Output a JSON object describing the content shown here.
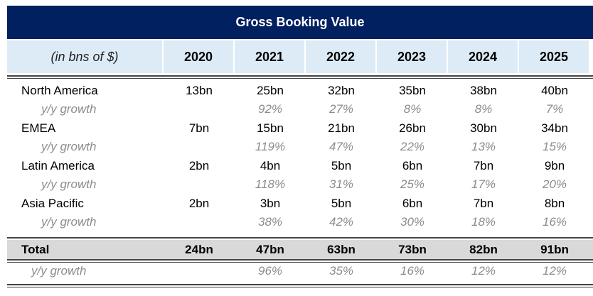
{
  "title": "Gross Booking Value",
  "header": {
    "label": "(in bns of $)",
    "years": [
      "2020",
      "2021",
      "2022",
      "2023",
      "2024",
      "2025"
    ]
  },
  "regions": [
    {
      "name": "North America",
      "values": [
        "13bn",
        "25bn",
        "32bn",
        "35bn",
        "38bn",
        "40bn"
      ],
      "growth_label": "y/y growth",
      "growth": [
        "",
        "92%",
        "27%",
        "8%",
        "8%",
        "7%"
      ]
    },
    {
      "name": "EMEA",
      "values": [
        "7bn",
        "15bn",
        "21bn",
        "26bn",
        "30bn",
        "34bn"
      ],
      "growth_label": "y/y growth",
      "growth": [
        "",
        "119%",
        "47%",
        "22%",
        "13%",
        "15%"
      ]
    },
    {
      "name": "Latin America",
      "values": [
        "2bn",
        "4bn",
        "5bn",
        "6bn",
        "7bn",
        "9bn"
      ],
      "growth_label": "y/y growth",
      "growth": [
        "",
        "118%",
        "31%",
        "25%",
        "17%",
        "20%"
      ]
    },
    {
      "name": "Asia Pacific",
      "values": [
        "2bn",
        "3bn",
        "5bn",
        "6bn",
        "7bn",
        "8bn"
      ],
      "growth_label": "y/y growth",
      "growth": [
        "",
        "38%",
        "42%",
        "30%",
        "18%",
        "16%"
      ]
    }
  ],
  "total": {
    "name": "Total",
    "values": [
      "24bn",
      "47bn",
      "63bn",
      "73bn",
      "82bn",
      "91bn"
    ],
    "growth_label": "y/y growth",
    "growth": [
      "",
      "96%",
      "35%",
      "16%",
      "12%",
      "12%"
    ]
  },
  "colors": {
    "title_bg": "#002060",
    "header_bg": "#ddebf7",
    "total_bg": "#d9d9d9",
    "growth_text": "#8c8c8c"
  }
}
